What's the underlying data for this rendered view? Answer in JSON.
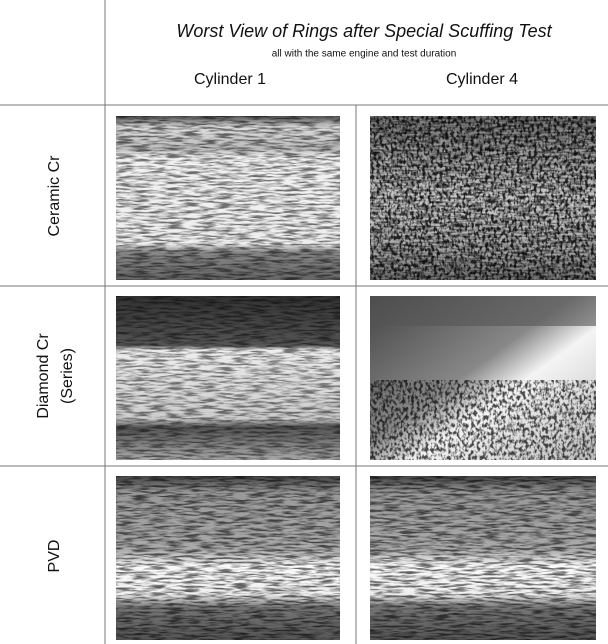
{
  "header": {
    "title": "Worst View of Rings after Special Scuffing Test",
    "subtitle": "all with the same engine and test duration"
  },
  "columns": [
    "Cylinder 1",
    "Cylinder 4"
  ],
  "rows": [
    {
      "label": [
        "Ceramic Cr"
      ]
    },
    {
      "label": [
        "Diamond Cr",
        "(Series)"
      ]
    },
    {
      "label": [
        "PVD"
      ]
    }
  ]
}
